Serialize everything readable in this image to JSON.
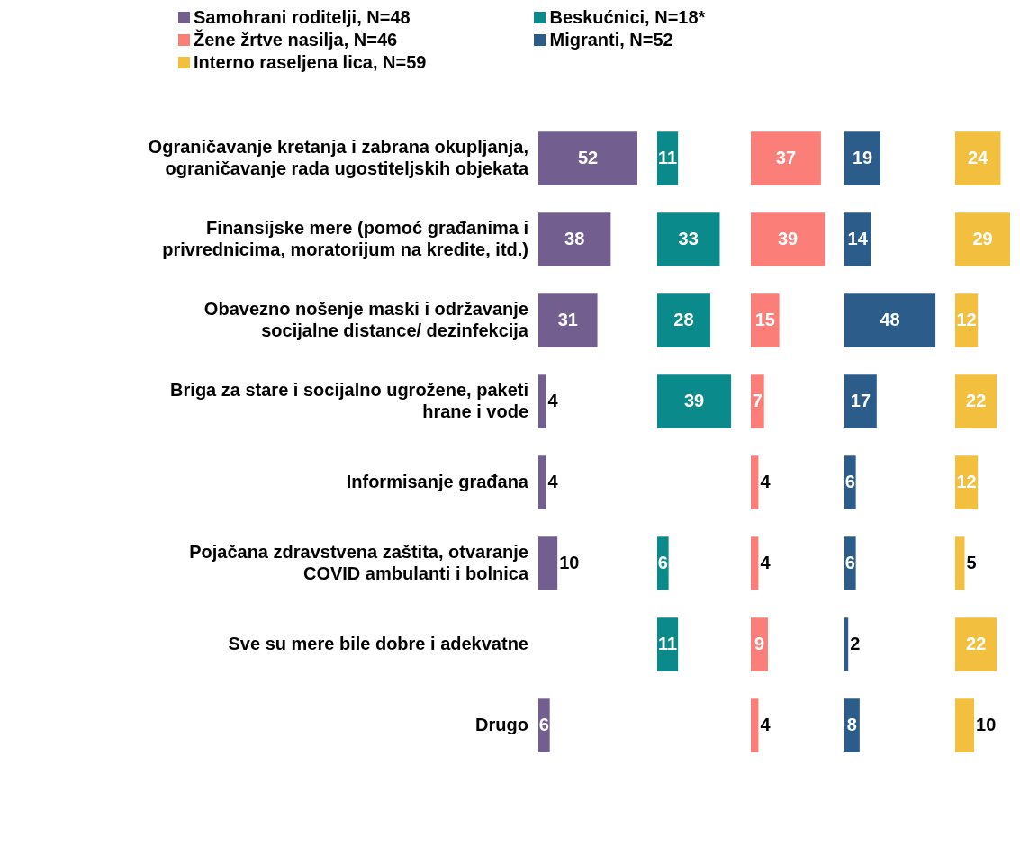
{
  "chart_data": [
    {
      "type": "bar",
      "orientation": "horizontal",
      "data_labels": true,
      "legend": "top",
      "tick_labels": "y",
      "categories": [
        "Ograničavanje kretanja i zabrana okupljanja, ograničavanje rada ugostiteljskih objekata",
        "Finansijske mere (pomoć građanima i privrednicima, moratorijum na kredite, itd.)",
        "Obavezno nošenje maski i održavanje socijalne distance/ dezinfekcija",
        "Briga za stare i socijalno ugrožene, paketi hrane i vode",
        "Informisanje građana",
        "Pojačana zdravstvena zaštita, otvaranje COVID ambulanti i bolnica",
        "Sve su mere bile dobre i adekvatne",
        "Drugo"
      ],
      "series": [
        {
          "name": "Samohrani roditelji, N=48",
          "color": "#735f8f",
          "values": [
            52,
            38,
            31,
            4,
            4,
            10,
            null,
            6
          ]
        }
      ]
    },
    {
      "type": "bar",
      "orientation": "horizontal",
      "data_labels": true,
      "legend": "top",
      "tick_labels": false,
      "categories": [
        null,
        null,
        null,
        null,
        null,
        null,
        null,
        null
      ],
      "series": [
        {
          "name": "Beskućnici, N=18*",
          "color": "#0b8a8c",
          "values": [
            11,
            33,
            28,
            39,
            null,
            6,
            11,
            null
          ]
        }
      ]
    },
    {
      "type": "bar",
      "orientation": "horizontal",
      "data_labels": true,
      "legend": "top",
      "tick_labels": false,
      "categories": [
        null,
        null,
        null,
        null,
        null,
        null,
        null,
        null
      ],
      "series": [
        {
          "name": "Žene žrtve nasilja, N=46",
          "color": "#fb7f78",
          "values": [
            37,
            39,
            15,
            7,
            4,
            4,
            9,
            4
          ]
        }
      ]
    },
    {
      "type": "bar",
      "orientation": "horizontal",
      "data_labels": true,
      "legend": "top",
      "tick_labels": false,
      "categories": [
        null,
        null,
        null,
        null,
        null,
        null,
        null,
        null
      ],
      "series": [
        {
          "name": "Migranti, N=52",
          "color": "#2b5c8a",
          "values": [
            19,
            14,
            48,
            17,
            6,
            6,
            2,
            8
          ]
        }
      ]
    },
    {
      "type": "bar",
      "orientation": "horizontal",
      "data_labels": true,
      "legend": "top",
      "tick_labels": false,
      "categories": [
        null,
        null,
        null,
        null,
        null,
        null,
        null,
        null
      ],
      "series": [
        {
          "name": "Interno raseljena lica, N=59",
          "color": "#f2c03e",
          "values": [
            24,
            29,
            12,
            22,
            12,
            5,
            22,
            10
          ]
        }
      ]
    }
  ]
}
